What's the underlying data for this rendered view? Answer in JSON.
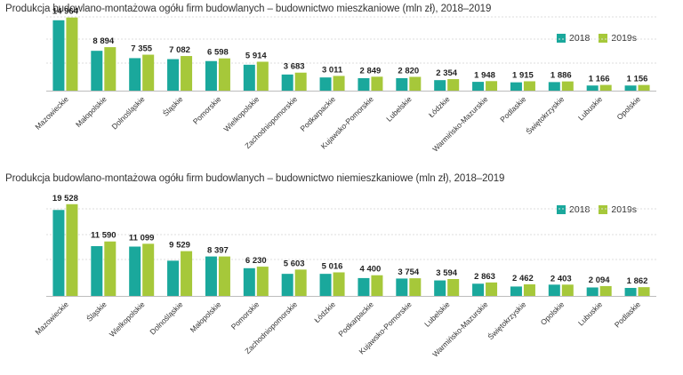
{
  "chart_data": [
    {
      "type": "bar",
      "title": "Produkcja budowlano-montażowa ogółu firm budowlanych – budownictwo mieszkaniowe (mln zł), 2018–2019",
      "categories": [
        "Mazowieckie",
        "Małopolskie",
        "Dolnośląskie",
        "Śląskie",
        "Pomorskie",
        "Wielkopolskie",
        "Zachodniopomorskie",
        "Podkarpackie",
        "Kujawsko-Pomorskie",
        "Lubelskie",
        "Łódzkie",
        "Warmińsko-Mazurskie",
        "Podlaskie",
        "Świętokrzyskie",
        "Lubuskie",
        "Opolskie"
      ],
      "series": [
        {
          "name": "2018",
          "values": [
            14400,
            8150,
            6650,
            6450,
            6050,
            5300,
            3300,
            2700,
            2550,
            2550,
            2150,
            1800,
            1700,
            1750,
            1050,
            1050
          ]
        },
        {
          "name": "2019s",
          "values": [
            14964,
            8894,
            7355,
            7082,
            6598,
            5914,
            3683,
            3011,
            2849,
            2820,
            2354,
            1948,
            1915,
            1886,
            1166,
            1156
          ]
        }
      ],
      "data_labels": [
        "14 964",
        "8 894",
        "7 355",
        "7 082",
        "6 598",
        "5 914",
        "3 683",
        "3 011",
        "2 849",
        "2 820",
        "2 354",
        "1 948",
        "1 915",
        "1 886",
        "1 166",
        "1 156"
      ],
      "ylim": [
        0,
        16000
      ],
      "xlabel": "",
      "ylabel": "",
      "legend": "top-right",
      "colors": [
        "#1aa89c",
        "#a6c83a"
      ]
    },
    {
      "type": "bar",
      "title": "Produkcja budowlano-montażowa ogółu firm budowlanych – budownictwo niemieszkaniowe (mln zł), 2018–2019",
      "categories": [
        "Mazowieckie",
        "Śląskie",
        "Wielkopolskie",
        "Dolnośląskie",
        "Małopolskie",
        "Pomorskie",
        "Zachodniopomorskie",
        "Łódzkie",
        "Podkarpackie",
        "Kujawsko-Pomorskie",
        "Lubelskie",
        "Warmińsko-Mazurskie",
        "Świętokrzyskie",
        "Opolskie",
        "Lubuskie",
        "Podlaskie"
      ],
      "series": [
        {
          "name": "2018",
          "values": [
            18300,
            10600,
            10500,
            7500,
            8400,
            5900,
            4700,
            4700,
            3800,
            3700,
            3300,
            2600,
            2000,
            2400,
            1800,
            1700
          ]
        },
        {
          "name": "2019s",
          "values": [
            19528,
            11590,
            11099,
            9529,
            8397,
            6230,
            5603,
            5016,
            4400,
            3754,
            3594,
            2863,
            2462,
            2403,
            2094,
            1862
          ]
        }
      ],
      "data_labels": [
        "19 528",
        "11 590",
        "11 099",
        "9 529",
        "8 397",
        "6 230",
        "5 603",
        "5 016",
        "4 400",
        "3 754",
        "3 594",
        "2 863",
        "2 462",
        "2 403",
        "2 094",
        "1 862"
      ],
      "ylim": [
        0,
        21000
      ],
      "xlabel": "",
      "ylabel": "",
      "legend": "top-right",
      "colors": [
        "#1aa89c",
        "#a6c83a"
      ]
    }
  ]
}
